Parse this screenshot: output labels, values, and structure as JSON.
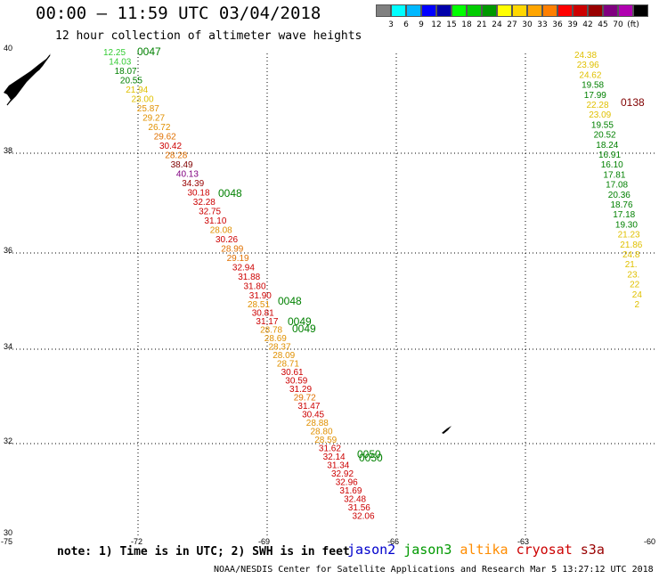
{
  "header": {
    "title": "00:00 – 11:59 UTC 03/04/2018",
    "subtitle": "12 hour collection of altimeter wave heights"
  },
  "colorbar": {
    "colors": [
      "#808080",
      "#00ffff",
      "#00b8ff",
      "#0000ff",
      "#0000aa",
      "#00ff00",
      "#00cc00",
      "#009900",
      "#ffff00",
      "#ffd700",
      "#ffa500",
      "#ff7f00",
      "#ff0000",
      "#cc0000",
      "#990000",
      "#800080",
      "#b000b0",
      "#000000"
    ],
    "labels": [
      "3",
      "6",
      "9",
      "12",
      "15",
      "18",
      "21",
      "24",
      "27",
      "30",
      "33",
      "36",
      "39",
      "42",
      "45",
      "70",
      "(ft)"
    ]
  },
  "axes": {
    "lat_ticks": [
      "40",
      "38",
      "36",
      "34",
      "32",
      "30"
    ],
    "lon_ticks": [
      "-75",
      "-72",
      "-69",
      "-66",
      "-63",
      "-60"
    ]
  },
  "passes": [
    {
      "label": "0047",
      "color": "#008000"
    },
    {
      "label": "0048",
      "color": "#008000"
    },
    {
      "label": "0048",
      "color": "#008000"
    },
    {
      "label": "0049",
      "color": "#008000"
    },
    {
      "label": "0049",
      "color": "#008000"
    },
    {
      "label": "0050",
      "color": "#008000"
    },
    {
      "label": "0050",
      "color": "#008000"
    },
    {
      "label": "0138",
      "color": "#800000"
    }
  ],
  "track_a": [
    {
      "v": "12.25",
      "c": "#33cc33"
    },
    {
      "v": "14.03",
      "c": "#33cc33"
    },
    {
      "v": "18.07",
      "c": "#008000"
    },
    {
      "v": "20.55",
      "c": "#008000"
    },
    {
      "v": "21.94",
      "c": "#e0c000"
    },
    {
      "v": "23.00",
      "c": "#e0c000"
    },
    {
      "v": "25.87",
      "c": "#e09000"
    },
    {
      "v": "29.27",
      "c": "#e09000"
    },
    {
      "v": "26.72",
      "c": "#e09000"
    },
    {
      "v": "29.62",
      "c": "#e07000"
    },
    {
      "v": "30.42",
      "c": "#cc0000"
    },
    {
      "v": "28.28",
      "c": "#e07000"
    },
    {
      "v": "38.49",
      "c": "#800000"
    },
    {
      "v": "40.13",
      "c": "#800080"
    },
    {
      "v": "34.39",
      "c": "#990000"
    },
    {
      "v": "30.18",
      "c": "#cc0000"
    },
    {
      "v": "32.28",
      "c": "#cc0000"
    },
    {
      "v": "32.75",
      "c": "#cc0000"
    },
    {
      "v": "31.10",
      "c": "#cc0000"
    },
    {
      "v": "28.08",
      "c": "#e09000"
    },
    {
      "v": "30.26",
      "c": "#cc0000"
    },
    {
      "v": "28.99",
      "c": "#e07000"
    },
    {
      "v": "29.19",
      "c": "#e07000"
    },
    {
      "v": "32.94",
      "c": "#cc0000"
    },
    {
      "v": "31.88",
      "c": "#cc0000"
    },
    {
      "v": "31.80",
      "c": "#cc0000"
    },
    {
      "v": "31.90",
      "c": "#cc0000"
    }
  ],
  "track_b": [
    {
      "v": "28.51",
      "c": "#e09000"
    },
    {
      "v": "30.81",
      "c": "#cc0000"
    },
    {
      "v": "31.17",
      "c": "#cc0000"
    },
    {
      "v": "28.78",
      "c": "#e09000"
    },
    {
      "v": "28.69",
      "c": "#e09000"
    },
    {
      "v": "28.37",
      "c": "#e09000"
    },
    {
      "v": "28.09",
      "c": "#e09000"
    },
    {
      "v": "28.71",
      "c": "#e09000"
    },
    {
      "v": "30.61",
      "c": "#cc0000"
    },
    {
      "v": "30.59",
      "c": "#cc0000"
    },
    {
      "v": "31.29",
      "c": "#cc0000"
    },
    {
      "v": "29.72",
      "c": "#e07000"
    },
    {
      "v": "31.47",
      "c": "#cc0000"
    },
    {
      "v": "30.45",
      "c": "#cc0000"
    },
    {
      "v": "28.88",
      "c": "#e09000"
    },
    {
      "v": "28.80",
      "c": "#e09000"
    },
    {
      "v": "28.59",
      "c": "#e09000"
    },
    {
      "v": "31.62",
      "c": "#cc0000"
    },
    {
      "v": "32.14",
      "c": "#cc0000"
    },
    {
      "v": "31.34",
      "c": "#cc0000"
    },
    {
      "v": "32.92",
      "c": "#cc0000"
    },
    {
      "v": "32.96",
      "c": "#cc0000"
    },
    {
      "v": "31.69",
      "c": "#cc0000"
    },
    {
      "v": "32.48",
      "c": "#cc0000"
    },
    {
      "v": "31.56",
      "c": "#cc0000"
    },
    {
      "v": "32.06",
      "c": "#cc0000"
    }
  ],
  "track_c": [
    {
      "v": "24.38",
      "c": "#e0c000"
    },
    {
      "v": "23.96",
      "c": "#e0c000"
    },
    {
      "v": "24.62",
      "c": "#e0c000"
    },
    {
      "v": "19.58",
      "c": "#008000"
    },
    {
      "v": "17.99",
      "c": "#008000"
    },
    {
      "v": "22.28",
      "c": "#e0c000"
    },
    {
      "v": "23.09",
      "c": "#e0c000"
    },
    {
      "v": "19.55",
      "c": "#008000"
    },
    {
      "v": "20.52",
      "c": "#008000"
    },
    {
      "v": "18.24",
      "c": "#008000"
    },
    {
      "v": "16.91",
      "c": "#008000"
    },
    {
      "v": "16.10",
      "c": "#008000"
    },
    {
      "v": "17.81",
      "c": "#008000"
    },
    {
      "v": "17.08",
      "c": "#008000"
    },
    {
      "v": "20.36",
      "c": "#008000"
    },
    {
      "v": "18.76",
      "c": "#008000"
    },
    {
      "v": "17.18",
      "c": "#008000"
    },
    {
      "v": "19.30",
      "c": "#008000"
    },
    {
      "v": "21.23",
      "c": "#e0c000"
    },
    {
      "v": "21.86",
      "c": "#e0c000"
    },
    {
      "v": "24.8",
      "c": "#e0c000"
    },
    {
      "v": "21.",
      "c": "#e0c000"
    },
    {
      "v": "23.",
      "c": "#e0c000"
    },
    {
      "v": "22",
      "c": "#e0c000"
    },
    {
      "v": "24",
      "c": "#e0c000"
    },
    {
      "v": "2",
      "c": "#e0c000"
    }
  ],
  "footer": {
    "note": "note: 1) Time is in UTC; 2) SWH is in feet",
    "satellites": [
      {
        "name": "jason2",
        "color": "#0000cc"
      },
      {
        "name": "jason3",
        "color": "#009900"
      },
      {
        "name": "altika",
        "color": "#ff8c00"
      },
      {
        "name": "cryosat",
        "color": "#cc0000"
      },
      {
        "name": "s3a",
        "color": "#990000"
      }
    ],
    "credit": "NOAA/NESDIS Center for Satellite Applications and Research   Mar  5 13:27:12 UTC 2018"
  }
}
